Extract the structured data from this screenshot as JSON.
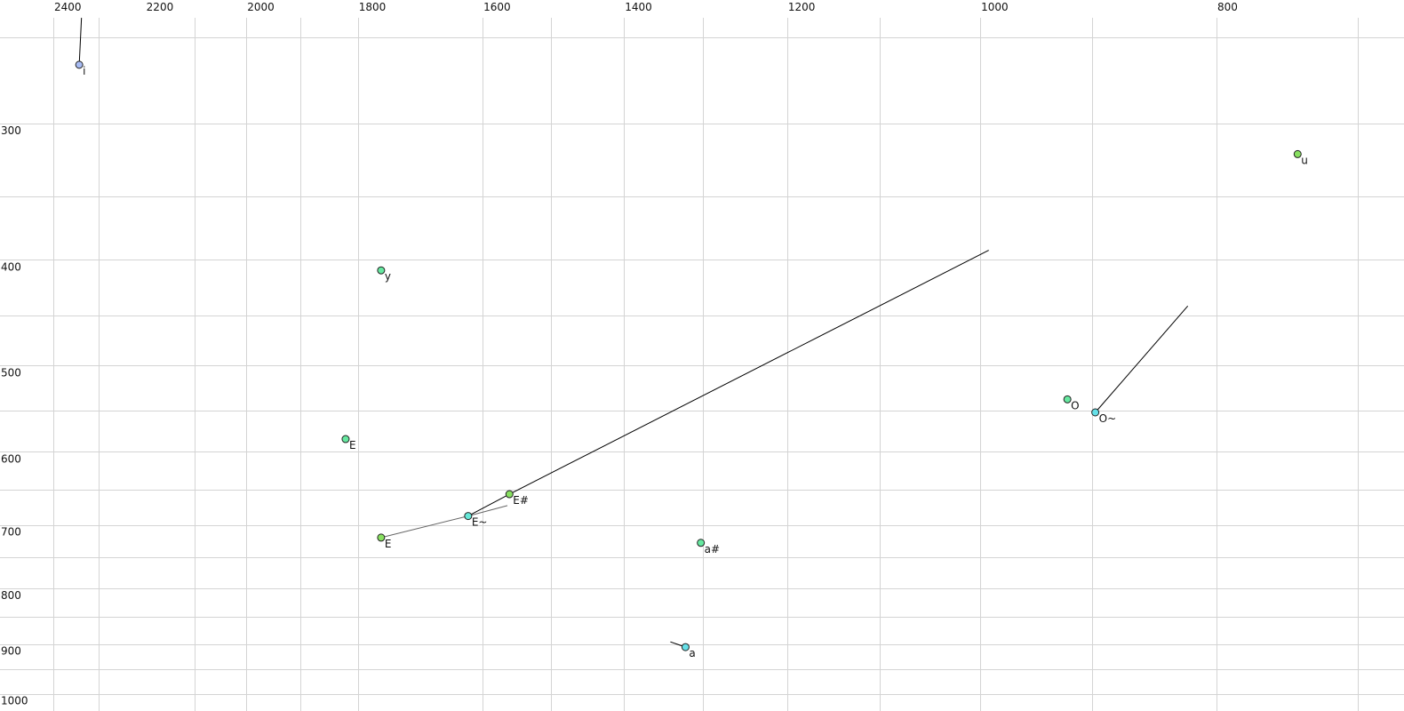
{
  "chart_data": {
    "type": "scatter",
    "title": "",
    "xlabel": "",
    "ylabel": "",
    "x_scale": "log",
    "y_scale": "log",
    "x_reversed": true,
    "xlim": [
      2400,
      700
    ],
    "ylim": [
      250,
      1000
    ],
    "grid": true,
    "x_ticks": [
      2400,
      2200,
      2000,
      1800,
      1600,
      1400,
      1200,
      1000,
      800
    ],
    "y_ticks": [
      300,
      400,
      500,
      600,
      700,
      800,
      900,
      1000
    ],
    "x_grid": [
      2400,
      2300,
      2100,
      2000,
      1900,
      1800,
      1600,
      1500,
      1400,
      1300,
      1200,
      1100,
      1000,
      900,
      800,
      700
    ],
    "y_grid": [
      250,
      300,
      350,
      400,
      450,
      500,
      550,
      600,
      650,
      700,
      750,
      800,
      850,
      900,
      950,
      1000
    ],
    "points": [
      {
        "label": "i",
        "f2": 2342,
        "f1": 265,
        "color": "#a8bcf4"
      },
      {
        "label": "u",
        "f2": 741,
        "f1": 320,
        "color": "#88e060"
      },
      {
        "label": "y",
        "f2": 1761,
        "f1": 409,
        "color": "#66e8a0"
      },
      {
        "label": "E",
        "f2": 1821,
        "f1": 584,
        "color": "#66e8a0"
      },
      {
        "label": "E",
        "f2": 1761,
        "f1": 719,
        "color": "#88e060",
        "label_color": "#666677"
      },
      {
        "label": "E~",
        "f2": 1622,
        "f1": 687,
        "color": "#66e8d8"
      },
      {
        "label": "E#",
        "f2": 1560,
        "f1": 656,
        "color": "#88e060"
      },
      {
        "label": "a#",
        "f2": 1302,
        "f1": 727,
        "color": "#66e8a0"
      },
      {
        "label": "a",
        "f2": 1321,
        "f1": 906,
        "color": "#66e0e8"
      },
      {
        "label": "O",
        "f2": 921,
        "f1": 537,
        "color": "#66e8a0"
      },
      {
        "label": "O~",
        "f2": 897,
        "f1": 552,
        "color": "#66e0e8"
      }
    ],
    "trajectories": [
      {
        "color": "#000000",
        "points": [
          [
            2342,
            265
          ],
          [
            2337,
            240
          ]
        ]
      },
      {
        "color": "#000000",
        "points": [
          [
            1622,
            687
          ],
          [
            1560,
            656
          ],
          [
            992,
            392
          ]
        ]
      },
      {
        "color": "#666666",
        "points": [
          [
            1761,
            719
          ],
          [
            1622,
            687
          ],
          [
            1563,
            672
          ]
        ]
      },
      {
        "color": "#000000",
        "points": [
          [
            897,
            552
          ],
          [
            822,
            441
          ]
        ]
      },
      {
        "color": "#000000",
        "points": [
          [
            1321,
            906
          ],
          [
            1340,
            896
          ]
        ]
      }
    ]
  }
}
